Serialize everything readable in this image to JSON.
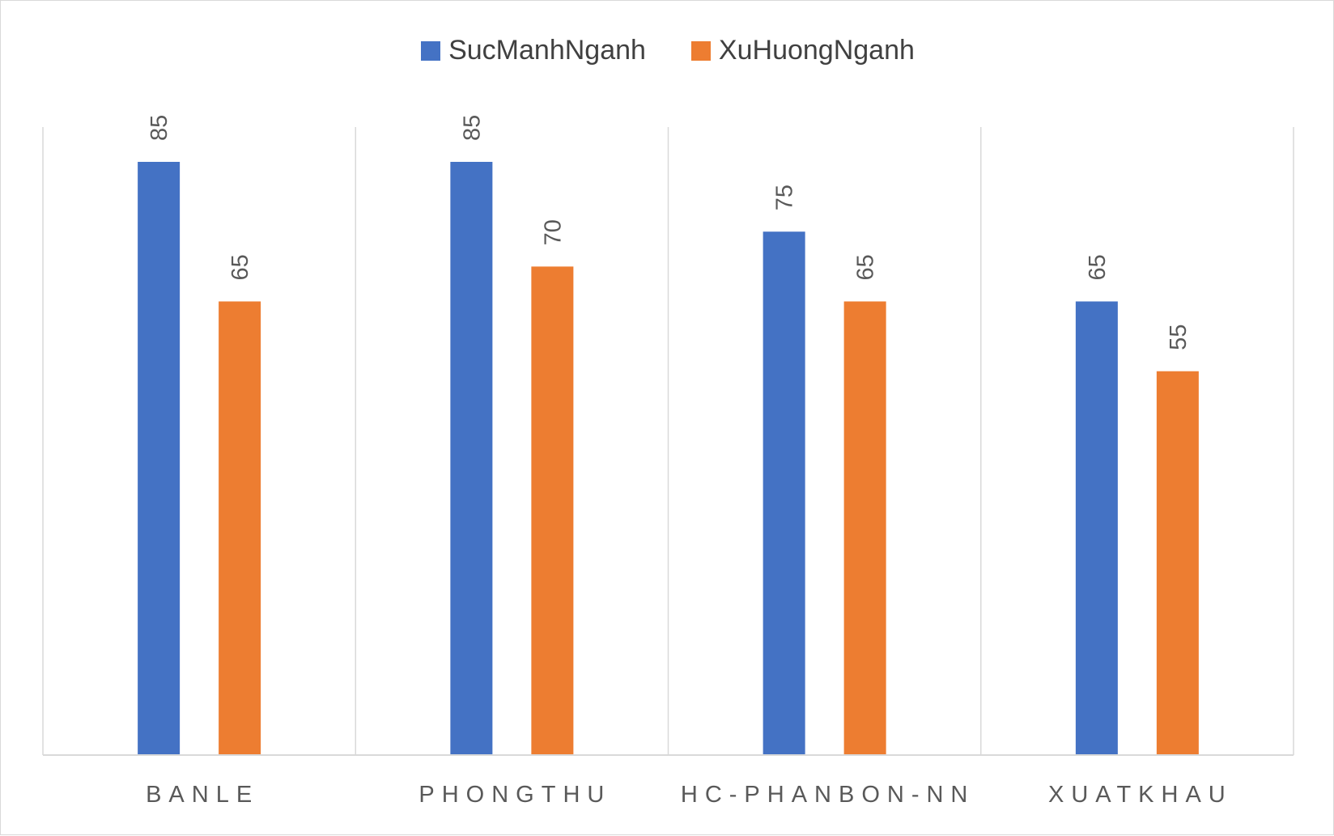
{
  "chart_data": {
    "type": "bar",
    "categories": [
      "BANLE",
      "PHONGTHU",
      "HC-PHANBON-NN",
      "XUATKHAU"
    ],
    "series": [
      {
        "name": "SucManhNganh",
        "values": [
          85,
          85,
          75,
          65
        ],
        "color": "#4472c4"
      },
      {
        "name": "XuHuongNganh",
        "values": [
          65,
          70,
          65,
          55
        ],
        "color": "#ed7d31"
      }
    ],
    "title": "",
    "xlabel": "",
    "ylabel": "",
    "ylim": [
      0,
      90
    ],
    "grid": "vertical-separators",
    "legend": "top-center",
    "axis_color": "#d9d9d9"
  }
}
